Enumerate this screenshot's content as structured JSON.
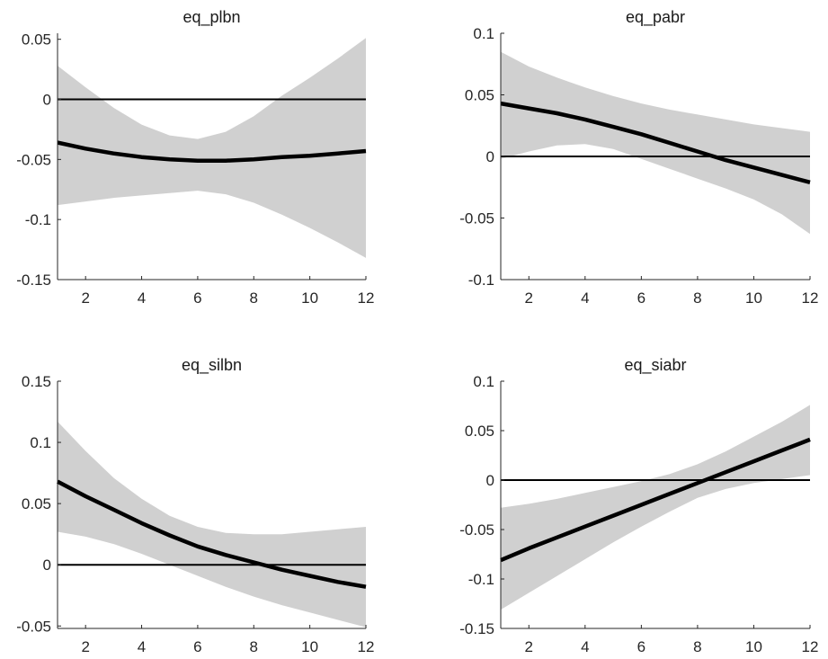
{
  "chart_data": [
    {
      "type": "line",
      "title": "eq_plbn",
      "xlim": [
        1,
        12
      ],
      "ylim": [
        -0.15,
        0.055
      ],
      "x_ticks": [
        2,
        4,
        6,
        8,
        10,
        12
      ],
      "y_ticks": [
        0.05,
        0,
        -0.05,
        -0.1,
        -0.15
      ],
      "y_tick_labels": [
        "0.05",
        "0",
        "-0.05",
        "-0.1",
        "-0.15"
      ],
      "x": [
        1,
        2,
        3,
        4,
        5,
        6,
        7,
        8,
        9,
        10,
        11,
        12
      ],
      "series": [
        {
          "values": [
            -0.036,
            -0.041,
            -0.045,
            -0.048,
            -0.05,
            -0.051,
            -0.051,
            -0.05,
            -0.048,
            -0.047,
            -0.045,
            -0.043
          ]
        }
      ],
      "band": {
        "upper": [
          0.028,
          0.01,
          -0.007,
          -0.021,
          -0.03,
          -0.033,
          -0.027,
          -0.014,
          0.003,
          0.018,
          0.034,
          0.051
        ],
        "lower": [
          -0.088,
          -0.085,
          -0.082,
          -0.08,
          -0.078,
          -0.076,
          -0.079,
          -0.086,
          -0.096,
          -0.107,
          -0.119,
          -0.132
        ]
      },
      "zero_line": 0
    },
    {
      "type": "line",
      "title": "eq_pabr",
      "xlim": [
        1,
        12
      ],
      "ylim": [
        -0.1,
        0.1
      ],
      "x_ticks": [
        2,
        4,
        6,
        8,
        10,
        12
      ],
      "y_ticks": [
        0.1,
        0.05,
        0,
        -0.05,
        -0.1
      ],
      "y_tick_labels": [
        "0.1",
        "0.05",
        "0",
        "-0.05",
        "-0.1"
      ],
      "x": [
        1,
        2,
        3,
        4,
        5,
        6,
        7,
        8,
        9,
        10,
        11,
        12
      ],
      "series": [
        {
          "values": [
            0.043,
            0.039,
            0.035,
            0.03,
            0.024,
            0.018,
            0.011,
            0.004,
            -0.003,
            -0.009,
            -0.015,
            -0.021
          ]
        }
      ],
      "band": {
        "upper": [
          0.085,
          0.073,
          0.064,
          0.056,
          0.049,
          0.043,
          0.038,
          0.034,
          0.03,
          0.026,
          0.023,
          0.02
        ],
        "lower": [
          -0.002,
          0.004,
          0.009,
          0.01,
          0.006,
          -0.002,
          -0.01,
          -0.018,
          -0.026,
          -0.035,
          -0.047,
          -0.063
        ]
      },
      "zero_line": 0
    },
    {
      "type": "line",
      "title": "eq_silbn",
      "xlim": [
        1,
        12
      ],
      "ylim": [
        -0.052,
        0.15
      ],
      "x_ticks": [
        2,
        4,
        6,
        8,
        10,
        12
      ],
      "y_ticks": [
        0.15,
        0.1,
        0.05,
        0,
        -0.05
      ],
      "y_tick_labels": [
        "0.15",
        "0.1",
        "0.05",
        "0",
        "-0.05"
      ],
      "x": [
        1,
        2,
        3,
        4,
        5,
        6,
        7,
        8,
        9,
        10,
        11,
        12
      ],
      "series": [
        {
          "values": [
            0.068,
            0.056,
            0.045,
            0.034,
            0.024,
            0.015,
            0.008,
            0.002,
            -0.004,
            -0.009,
            -0.014,
            -0.018
          ]
        }
      ],
      "band": {
        "upper": [
          0.117,
          0.093,
          0.071,
          0.054,
          0.04,
          0.031,
          0.026,
          0.025,
          0.025,
          0.027,
          0.029,
          0.031
        ],
        "lower": [
          0.027,
          0.023,
          0.017,
          0.009,
          0.0,
          -0.009,
          -0.018,
          -0.026,
          -0.033,
          -0.039,
          -0.045,
          -0.051
        ]
      },
      "zero_line": 0
    },
    {
      "type": "line",
      "title": "eq_siabr",
      "xlim": [
        1,
        12
      ],
      "ylim": [
        -0.15,
        0.1
      ],
      "x_ticks": [
        2,
        4,
        6,
        8,
        10,
        12
      ],
      "y_ticks": [
        0.1,
        0.05,
        0,
        -0.05,
        -0.1,
        -0.15
      ],
      "y_tick_labels": [
        "0.1",
        "0.05",
        "0",
        "-0.05",
        "-0.1",
        "-0.15"
      ],
      "x": [
        1,
        2,
        3,
        4,
        5,
        6,
        7,
        8,
        9,
        10,
        11,
        12
      ],
      "series": [
        {
          "values": [
            -0.081,
            -0.069,
            -0.058,
            -0.047,
            -0.036,
            -0.025,
            -0.014,
            -0.003,
            0.008,
            0.019,
            0.03,
            0.041
          ]
        }
      ],
      "band": {
        "upper": [
          -0.028,
          -0.024,
          -0.019,
          -0.013,
          -0.007,
          -0.001,
          0.006,
          0.016,
          0.029,
          0.044,
          0.059,
          0.076
        ],
        "lower": [
          -0.131,
          -0.114,
          -0.097,
          -0.08,
          -0.063,
          -0.047,
          -0.032,
          -0.018,
          -0.009,
          -0.003,
          0.001,
          0.005
        ]
      },
      "zero_line": 0
    }
  ]
}
